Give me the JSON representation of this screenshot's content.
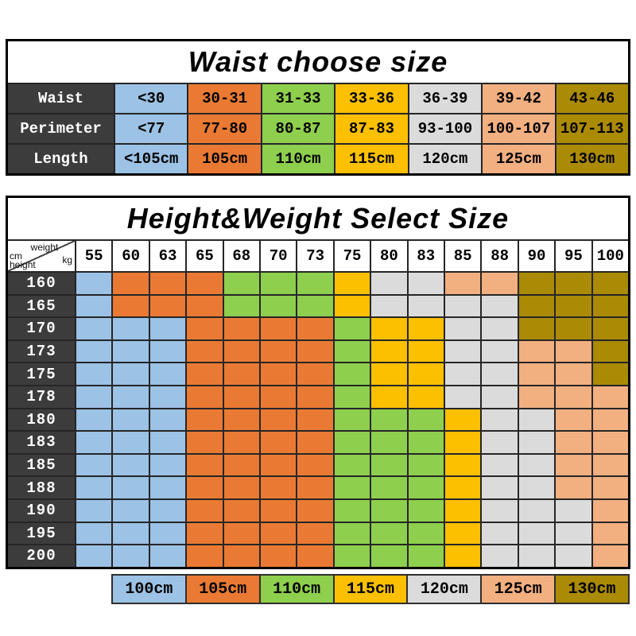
{
  "waist_table": {
    "title": "Waist choose size",
    "column_colors": [
      "blue",
      "orange",
      "green",
      "yellow",
      "gray",
      "pink",
      "olive"
    ],
    "rows": [
      {
        "label": "Waist",
        "values": [
          "<30",
          "30-31",
          "31-33",
          "33-36",
          "36-39",
          "39-42",
          "43-46"
        ]
      },
      {
        "label": "Perimeter",
        "values": [
          "<77",
          "77-80",
          "80-87",
          "87-83",
          "93-100",
          "100-107",
          "107-113"
        ]
      },
      {
        "label": "Length",
        "values": [
          "<105cm",
          "105cm",
          "110cm",
          "115cm",
          "120cm",
          "125cm",
          "130cm"
        ]
      }
    ]
  },
  "size_matrix": {
    "title": "Height&Weight Select Size",
    "corner": {
      "weight_label": "weight",
      "kg_label": "kg",
      "cm_label": "cm",
      "height_label": "height"
    },
    "weights": [
      "55",
      "60",
      "63",
      "65",
      "68",
      "70",
      "73",
      "75",
      "80",
      "83",
      "85",
      "88",
      "90",
      "95",
      "100"
    ],
    "heights": [
      "160",
      "165",
      "170",
      "173",
      "175",
      "178",
      "180",
      "183",
      "185",
      "188",
      "190",
      "195",
      "200"
    ],
    "color_key": {
      "b": "blue",
      "o": "orange",
      "g": "green",
      "y": "yellow",
      "s": "gray",
      "p": "pink",
      "d": "olive"
    },
    "cell_rows": [
      "booogggyssppddd",
      "booogggyssssddd",
      "bbboooogyyssddd",
      "bbboooogyyssppd",
      "bbboooogyyssppd",
      "bbboooogyyssppp",
      "bbboooogggysspp",
      "bbboooogggysspp",
      "bbboooogggysspp",
      "bbboooogggysspp",
      "bbboooogggysssp",
      "bbboooogggysssp",
      "bbboooogggysssp"
    ]
  },
  "legend": [
    {
      "label": "100cm",
      "color": "blue"
    },
    {
      "label": "105cm",
      "color": "orange"
    },
    {
      "label": "110cm",
      "color": "green"
    },
    {
      "label": "115cm",
      "color": "yellow"
    },
    {
      "label": "120cm",
      "color": "gray"
    },
    {
      "label": "125cm",
      "color": "pink"
    },
    {
      "label": "130cm",
      "color": "olive"
    }
  ],
  "colors": {
    "blue": "#9CC2E5",
    "orange": "#EA7A33",
    "green": "#8ECF4D",
    "yellow": "#FCC000",
    "gray": "#DBDBDB",
    "pink": "#F2AF80",
    "olive": "#AB8A05",
    "header_bg": "#3C3C3C",
    "header_text": "#FFFFFF",
    "grid_line": "#262626"
  },
  "chart_data": [
    {
      "type": "table",
      "title": "Waist choose size",
      "rows": [
        [
          "Waist",
          "<30",
          "30-31",
          "31-33",
          "33-36",
          "36-39",
          "39-42",
          "43-46"
        ],
        [
          "Perimeter",
          "<77",
          "77-80",
          "80-87",
          "87-83",
          "93-100",
          "100-107",
          "107-113"
        ],
        [
          "Length",
          "<105cm",
          "105cm",
          "110cm",
          "115cm",
          "120cm",
          "125cm",
          "130cm"
        ]
      ]
    },
    {
      "type": "heatmap",
      "title": "Height&Weight Select Size",
      "xlabel": "weight kg",
      "ylabel": "cm height",
      "x": [
        55,
        60,
        63,
        65,
        68,
        70,
        73,
        75,
        80,
        83,
        85,
        88,
        90,
        95,
        100
      ],
      "y": [
        160,
        165,
        170,
        173,
        175,
        178,
        180,
        183,
        185,
        188,
        190,
        195,
        200
      ],
      "values_size_cm": [
        [
          100,
          105,
          105,
          105,
          110,
          110,
          110,
          115,
          120,
          120,
          125,
          125,
          130,
          130,
          130
        ],
        [
          100,
          105,
          105,
          105,
          110,
          110,
          110,
          115,
          120,
          120,
          120,
          120,
          130,
          130,
          130
        ],
        [
          100,
          100,
          100,
          105,
          105,
          105,
          105,
          110,
          115,
          115,
          120,
          120,
          130,
          130,
          130
        ],
        [
          100,
          100,
          100,
          105,
          105,
          105,
          105,
          110,
          115,
          115,
          120,
          120,
          125,
          125,
          130
        ],
        [
          100,
          100,
          100,
          105,
          105,
          105,
          105,
          110,
          115,
          115,
          120,
          120,
          125,
          125,
          130
        ],
        [
          100,
          100,
          100,
          105,
          105,
          105,
          105,
          110,
          115,
          115,
          120,
          120,
          125,
          125,
          125
        ],
        [
          100,
          100,
          100,
          105,
          105,
          105,
          105,
          110,
          110,
          110,
          115,
          120,
          120,
          125,
          125
        ],
        [
          100,
          100,
          100,
          105,
          105,
          105,
          105,
          110,
          110,
          110,
          115,
          120,
          120,
          125,
          125
        ],
        [
          100,
          100,
          100,
          105,
          105,
          105,
          105,
          110,
          110,
          110,
          115,
          120,
          120,
          125,
          125
        ],
        [
          100,
          100,
          100,
          105,
          105,
          105,
          105,
          110,
          110,
          110,
          115,
          120,
          120,
          125,
          125
        ],
        [
          100,
          100,
          100,
          105,
          105,
          105,
          105,
          110,
          110,
          110,
          115,
          120,
          120,
          120,
          125
        ],
        [
          100,
          100,
          100,
          105,
          105,
          105,
          105,
          110,
          110,
          110,
          115,
          120,
          120,
          120,
          125
        ],
        [
          100,
          100,
          100,
          105,
          105,
          105,
          105,
          110,
          110,
          110,
          115,
          120,
          120,
          120,
          125
        ]
      ],
      "legend": [
        "100cm",
        "105cm",
        "110cm",
        "115cm",
        "120cm",
        "125cm",
        "130cm"
      ],
      "legend_position": "bottom",
      "grid": true
    }
  ]
}
